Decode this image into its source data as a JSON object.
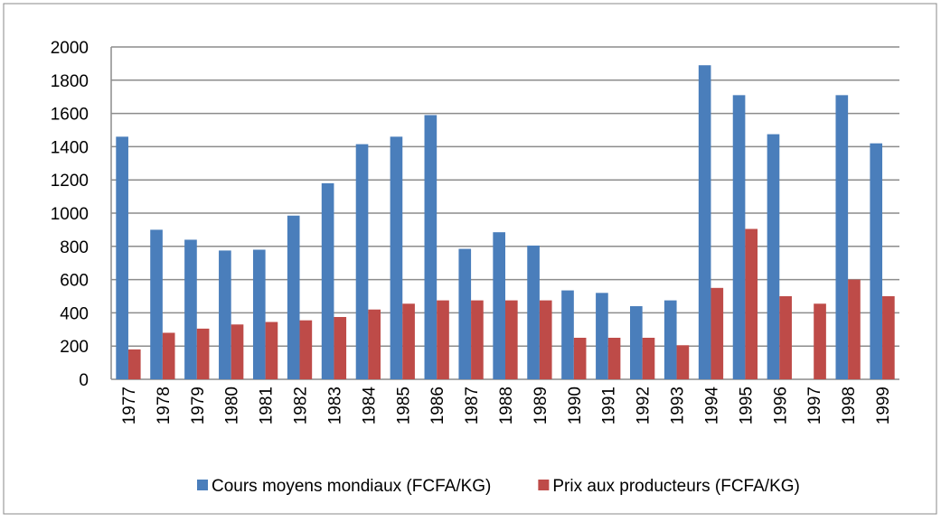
{
  "chart_data": {
    "type": "bar",
    "categories": [
      "1977",
      "1978",
      "1979",
      "1980",
      "1981",
      "1982",
      "1983",
      "1984",
      "1985",
      "1986",
      "1987",
      "1988",
      "1989",
      "1990",
      "1991",
      "1992",
      "1993",
      "1994",
      "1995",
      "1996",
      "1997",
      "1998",
      "1999"
    ],
    "series": [
      {
        "name": "Cours moyens mondiaux (FCFA/KG)",
        "color": "#4a7ebb",
        "values": [
          1460,
          900,
          840,
          775,
          780,
          985,
          1180,
          1415,
          1460,
          1590,
          785,
          885,
          805,
          535,
          520,
          440,
          475,
          1890,
          1710,
          1475,
          0,
          1710,
          1420
        ]
      },
      {
        "name": "Prix aux producteurs (FCFA/KG)",
        "color": "#be4b48",
        "values": [
          180,
          280,
          305,
          330,
          345,
          355,
          375,
          420,
          455,
          475,
          475,
          475,
          475,
          250,
          250,
          250,
          205,
          550,
          905,
          500,
          455,
          600,
          500
        ]
      }
    ],
    "ylim": [
      0,
      2000
    ],
    "yticks": [
      0,
      200,
      400,
      600,
      800,
      1000,
      1200,
      1400,
      1600,
      1800,
      2000
    ],
    "grid": true
  }
}
